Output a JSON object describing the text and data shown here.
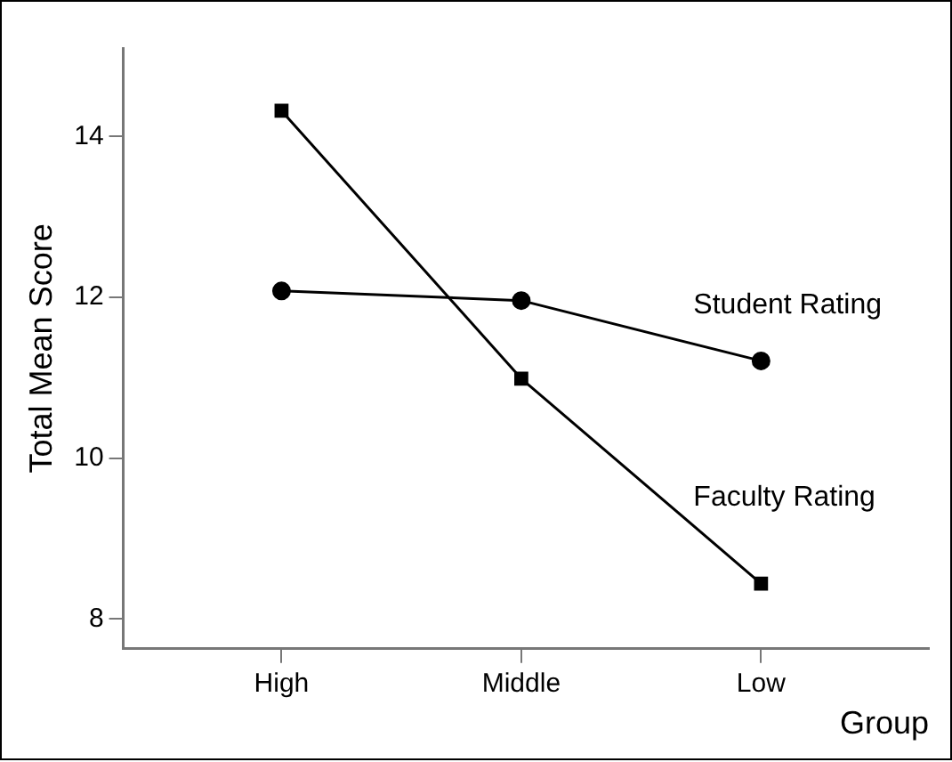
{
  "chart_data": {
    "type": "line",
    "xlabel": "Group",
    "ylabel": "Total Mean Score",
    "categories": [
      "High",
      "Middle",
      "Low"
    ],
    "ylim": [
      7.63,
      15.1
    ],
    "yticks": [
      8,
      10,
      12,
      14
    ],
    "grid": false,
    "legend": false,
    "line_style": "solid",
    "series": [
      {
        "name": "Student Rating",
        "color": "#000000",
        "marker": "circle",
        "values": [
          12.08,
          11.96,
          11.21
        ]
      },
      {
        "name": "Faculty Rating",
        "color": "#000000",
        "marker": "square",
        "values": [
          14.32,
          10.99,
          8.44
        ]
      }
    ]
  }
}
